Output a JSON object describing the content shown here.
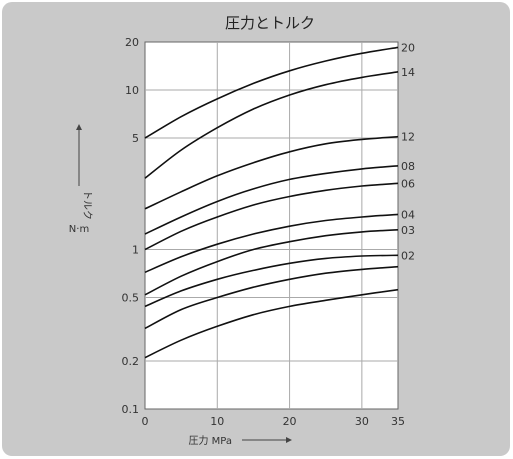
{
  "chart_data": {
    "type": "line",
    "title": "圧力とトルク",
    "xlabel": "圧力 MPa",
    "ylabel_lines": [
      "トルク",
      "N·m"
    ],
    "x_ticks": [
      0,
      10,
      20,
      30,
      35
    ],
    "y_ticks": [
      0.1,
      0.2,
      0.5,
      1,
      5,
      10,
      20
    ],
    "y_tick_labels": [
      "0.1",
      "0.2",
      "0.5",
      "1",
      "5",
      "10",
      "20"
    ],
    "xlim": [
      0,
      35
    ],
    "ylim": [
      0.1,
      20
    ],
    "y_scale": "log",
    "grid": true,
    "x": [
      0,
      5,
      10,
      15,
      20,
      25,
      30,
      35
    ],
    "series": [
      {
        "name": "20",
        "values": [
          5.0,
          6.8,
          8.8,
          11.0,
          13.2,
          15.2,
          17.0,
          18.5
        ]
      },
      {
        "name": "14",
        "values": [
          2.8,
          4.2,
          5.8,
          7.6,
          9.3,
          10.8,
          12.0,
          13.0
        ]
      },
      {
        "name": "12",
        "values": [
          1.8,
          2.3,
          2.9,
          3.5,
          4.1,
          4.6,
          4.9,
          5.1
        ]
      },
      {
        "name": "08",
        "values": [
          1.25,
          1.6,
          2.0,
          2.4,
          2.75,
          3.0,
          3.2,
          3.35
        ]
      },
      {
        "name": "06",
        "values": [
          1.0,
          1.3,
          1.6,
          1.9,
          2.15,
          2.35,
          2.5,
          2.6
        ]
      },
      {
        "name": "04",
        "values": [
          0.72,
          0.9,
          1.08,
          1.25,
          1.4,
          1.52,
          1.6,
          1.66
        ]
      },
      {
        "name": "03",
        "values": [
          0.52,
          0.68,
          0.84,
          1.0,
          1.12,
          1.22,
          1.29,
          1.33
        ]
      },
      {
        "name": "02",
        "values": [
          0.44,
          0.55,
          0.65,
          0.74,
          0.82,
          0.88,
          0.91,
          0.92
        ]
      },
      {
        "name": "",
        "values": [
          0.32,
          0.42,
          0.5,
          0.58,
          0.65,
          0.71,
          0.75,
          0.78
        ]
      },
      {
        "name": "",
        "values": [
          0.21,
          0.27,
          0.33,
          0.39,
          0.44,
          0.48,
          0.52,
          0.56
        ]
      }
    ]
  }
}
